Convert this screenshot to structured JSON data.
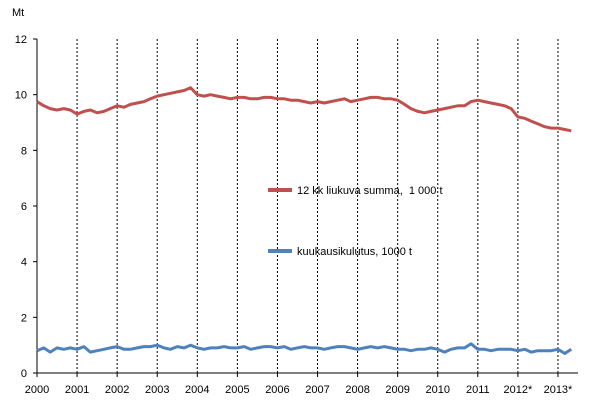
{
  "chart_data": {
    "type": "line",
    "unit_label": "Mt",
    "ylim": [
      0,
      12
    ],
    "yticks": [
      0,
      2,
      4,
      6,
      8,
      10,
      12
    ],
    "xlim": [
      2000,
      2013.5
    ],
    "x_tick_labels": [
      "2000",
      "2001",
      "2002",
      "2003",
      "2004",
      "2005",
      "2006",
      "2007",
      "2008",
      "2009",
      "2010",
      "2011",
      "2012*",
      "2013*"
    ],
    "grid": "vertical dashed at year boundaries",
    "legend": "inside plot area",
    "series": [
      {
        "name": "12 kk liukuva summa,  1 000 t",
        "color": "#c0504d",
        "points": [
          [
            2000.0,
            9.75
          ],
          [
            2000.17,
            9.6
          ],
          [
            2000.33,
            9.5
          ],
          [
            2000.5,
            9.45
          ],
          [
            2000.67,
            9.5
          ],
          [
            2000.83,
            9.45
          ],
          [
            2001.0,
            9.3
          ],
          [
            2001.17,
            9.4
          ],
          [
            2001.33,
            9.45
          ],
          [
            2001.5,
            9.35
          ],
          [
            2001.67,
            9.4
          ],
          [
            2001.83,
            9.5
          ],
          [
            2002.0,
            9.6
          ],
          [
            2002.17,
            9.55
          ],
          [
            2002.33,
            9.65
          ],
          [
            2002.5,
            9.7
          ],
          [
            2002.67,
            9.75
          ],
          [
            2002.83,
            9.85
          ],
          [
            2003.0,
            9.95
          ],
          [
            2003.17,
            10.0
          ],
          [
            2003.33,
            10.05
          ],
          [
            2003.5,
            10.1
          ],
          [
            2003.67,
            10.15
          ],
          [
            2003.83,
            10.25
          ],
          [
            2004.0,
            10.0
          ],
          [
            2004.17,
            9.95
          ],
          [
            2004.33,
            10.0
          ],
          [
            2004.5,
            9.95
          ],
          [
            2004.67,
            9.9
          ],
          [
            2004.83,
            9.85
          ],
          [
            2005.0,
            9.9
          ],
          [
            2005.17,
            9.9
          ],
          [
            2005.33,
            9.85
          ],
          [
            2005.5,
            9.85
          ],
          [
            2005.67,
            9.9
          ],
          [
            2005.83,
            9.9
          ],
          [
            2006.0,
            9.85
          ],
          [
            2006.17,
            9.85
          ],
          [
            2006.33,
            9.8
          ],
          [
            2006.5,
            9.8
          ],
          [
            2006.67,
            9.75
          ],
          [
            2006.83,
            9.7
          ],
          [
            2007.0,
            9.75
          ],
          [
            2007.17,
            9.7
          ],
          [
            2007.33,
            9.75
          ],
          [
            2007.5,
            9.8
          ],
          [
            2007.67,
            9.85
          ],
          [
            2007.83,
            9.75
          ],
          [
            2008.0,
            9.8
          ],
          [
            2008.17,
            9.85
          ],
          [
            2008.33,
            9.9
          ],
          [
            2008.5,
            9.9
          ],
          [
            2008.67,
            9.85
          ],
          [
            2008.83,
            9.85
          ],
          [
            2009.0,
            9.8
          ],
          [
            2009.17,
            9.65
          ],
          [
            2009.33,
            9.5
          ],
          [
            2009.5,
            9.4
          ],
          [
            2009.67,
            9.35
          ],
          [
            2009.83,
            9.4
          ],
          [
            2010.0,
            9.45
          ],
          [
            2010.17,
            9.5
          ],
          [
            2010.33,
            9.55
          ],
          [
            2010.5,
            9.6
          ],
          [
            2010.67,
            9.6
          ],
          [
            2010.83,
            9.75
          ],
          [
            2011.0,
            9.8
          ],
          [
            2011.17,
            9.75
          ],
          [
            2011.33,
            9.7
          ],
          [
            2011.5,
            9.65
          ],
          [
            2011.67,
            9.6
          ],
          [
            2011.83,
            9.5
          ],
          [
            2012.0,
            9.2
          ],
          [
            2012.17,
            9.15
          ],
          [
            2012.33,
            9.05
          ],
          [
            2012.5,
            8.95
          ],
          [
            2012.67,
            8.85
          ],
          [
            2012.83,
            8.8
          ],
          [
            2013.0,
            8.8
          ],
          [
            2013.17,
            8.75
          ],
          [
            2013.33,
            8.7
          ]
        ]
      },
      {
        "name": "kuukausikulutus, 1000 t",
        "color": "#4f81bd",
        "points": [
          [
            2000.0,
            0.8
          ],
          [
            2000.17,
            0.9
          ],
          [
            2000.33,
            0.75
          ],
          [
            2000.5,
            0.9
          ],
          [
            2000.67,
            0.85
          ],
          [
            2000.83,
            0.9
          ],
          [
            2001.0,
            0.85
          ],
          [
            2001.17,
            0.95
          ],
          [
            2001.33,
            0.75
          ],
          [
            2001.5,
            0.8
          ],
          [
            2001.67,
            0.85
          ],
          [
            2001.83,
            0.9
          ],
          [
            2002.0,
            0.95
          ],
          [
            2002.17,
            0.85
          ],
          [
            2002.33,
            0.85
          ],
          [
            2002.5,
            0.9
          ],
          [
            2002.67,
            0.95
          ],
          [
            2002.83,
            0.95
          ],
          [
            2003.0,
            1.0
          ],
          [
            2003.17,
            0.9
          ],
          [
            2003.33,
            0.85
          ],
          [
            2003.5,
            0.95
          ],
          [
            2003.67,
            0.9
          ],
          [
            2003.83,
            1.0
          ],
          [
            2004.0,
            0.9
          ],
          [
            2004.17,
            0.85
          ],
          [
            2004.33,
            0.9
          ],
          [
            2004.5,
            0.9
          ],
          [
            2004.67,
            0.95
          ],
          [
            2004.83,
            0.9
          ],
          [
            2005.0,
            0.9
          ],
          [
            2005.17,
            0.95
          ],
          [
            2005.33,
            0.85
          ],
          [
            2005.5,
            0.9
          ],
          [
            2005.67,
            0.95
          ],
          [
            2005.83,
            0.95
          ],
          [
            2006.0,
            0.9
          ],
          [
            2006.17,
            0.95
          ],
          [
            2006.33,
            0.85
          ],
          [
            2006.5,
            0.9
          ],
          [
            2006.67,
            0.95
          ],
          [
            2006.83,
            0.9
          ],
          [
            2007.0,
            0.9
          ],
          [
            2007.17,
            0.85
          ],
          [
            2007.33,
            0.9
          ],
          [
            2007.5,
            0.95
          ],
          [
            2007.67,
            0.95
          ],
          [
            2007.83,
            0.9
          ],
          [
            2008.0,
            0.85
          ],
          [
            2008.17,
            0.9
          ],
          [
            2008.33,
            0.95
          ],
          [
            2008.5,
            0.9
          ],
          [
            2008.67,
            0.95
          ],
          [
            2008.83,
            0.9
          ],
          [
            2009.0,
            0.85
          ],
          [
            2009.17,
            0.85
          ],
          [
            2009.33,
            0.8
          ],
          [
            2009.5,
            0.85
          ],
          [
            2009.67,
            0.85
          ],
          [
            2009.83,
            0.9
          ],
          [
            2010.0,
            0.85
          ],
          [
            2010.17,
            0.75
          ],
          [
            2010.33,
            0.85
          ],
          [
            2010.5,
            0.9
          ],
          [
            2010.67,
            0.9
          ],
          [
            2010.83,
            1.05
          ],
          [
            2011.0,
            0.85
          ],
          [
            2011.17,
            0.85
          ],
          [
            2011.33,
            0.8
          ],
          [
            2011.5,
            0.85
          ],
          [
            2011.67,
            0.85
          ],
          [
            2011.83,
            0.85
          ],
          [
            2012.0,
            0.8
          ],
          [
            2012.17,
            0.85
          ],
          [
            2012.33,
            0.75
          ],
          [
            2012.5,
            0.8
          ],
          [
            2012.67,
            0.8
          ],
          [
            2012.83,
            0.8
          ],
          [
            2013.0,
            0.85
          ],
          [
            2013.17,
            0.7
          ],
          [
            2013.33,
            0.85
          ]
        ]
      }
    ]
  }
}
